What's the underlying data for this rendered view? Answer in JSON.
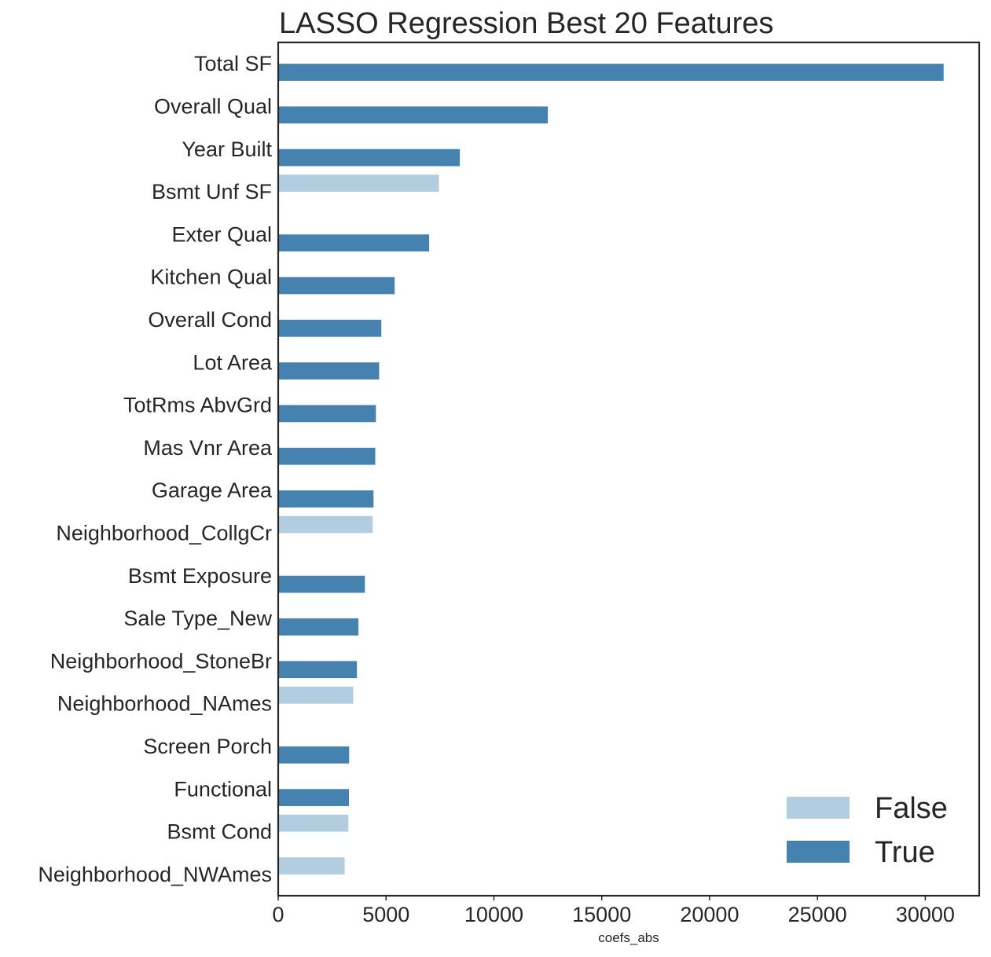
{
  "chart_data": {
    "type": "bar",
    "orientation": "horizontal",
    "title": "LASSO Regression Best 20 Features",
    "xlabel": "coefs_abs",
    "ylabel": "",
    "xlim": [
      0,
      32500
    ],
    "xticks": [
      0,
      5000,
      10000,
      15000,
      20000,
      25000,
      30000
    ],
    "xtick_labels": [
      "0",
      "5000",
      "10000",
      "15000",
      "20000",
      "25000",
      "30000"
    ],
    "grid": false,
    "legend_position": "bottom-right",
    "categories": [
      "Total SF",
      "Overall Qual",
      "Year Built",
      "Bsmt Unf SF",
      "Exter Qual",
      "Kitchen Qual",
      "Overall Cond",
      "Lot Area",
      "TotRms AbvGrd",
      "Mas Vnr Area",
      "Garage Area",
      "Neighborhood_CollgCr",
      "Bsmt Exposure",
      "Sale Type_New",
      "Neighborhood_StoneBr",
      "Neighborhood_NAmes",
      "Screen Porch",
      "Functional",
      "Bsmt Cond",
      "Neighborhood_NWAmes"
    ],
    "series": [
      {
        "name": "False",
        "color": "#b3cde0",
        "values": [
          null,
          null,
          null,
          7450,
          null,
          null,
          null,
          null,
          null,
          null,
          null,
          4380,
          null,
          null,
          null,
          3480,
          null,
          null,
          3250,
          3080
        ]
      },
      {
        "name": "True",
        "color": "#4682b0",
        "values": [
          30850,
          12500,
          8420,
          null,
          7000,
          5400,
          4780,
          4680,
          4530,
          4500,
          4420,
          null,
          4020,
          3720,
          3650,
          null,
          3290,
          3280,
          null,
          null
        ]
      }
    ]
  }
}
